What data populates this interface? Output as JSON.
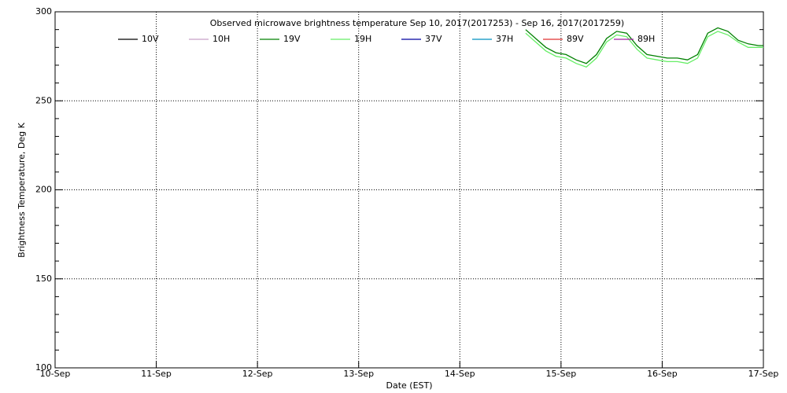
{
  "chart_data": {
    "type": "line",
    "title": "Observed microwave brightness temperature Sep 10, 2017(2017253) - Sep 16, 2017(2017259)",
    "x_label": "Date (EST)",
    "y_label": "Brightness Temperature, Deg K",
    "x": [
      4.65,
      4.75,
      4.85,
      4.95,
      5.05,
      5.15,
      5.25,
      5.35,
      5.45,
      5.55,
      5.65,
      5.75,
      5.85,
      5.95,
      6.05,
      6.15,
      6.25,
      6.35,
      6.45,
      6.55,
      6.65,
      6.75,
      6.85,
      6.95,
      7.0
    ],
    "xlim": [
      0,
      7
    ],
    "xticks": [
      {
        "value": 0,
        "label": "10-Sep"
      },
      {
        "value": 1,
        "label": "11-Sep"
      },
      {
        "value": 2,
        "label": "12-Sep"
      },
      {
        "value": 3,
        "label": "13-Sep"
      },
      {
        "value": 4,
        "label": "14-Sep"
      },
      {
        "value": 5,
        "label": "15-Sep"
      },
      {
        "value": 6,
        "label": "16-Sep"
      },
      {
        "value": 7,
        "label": "17-Sep"
      }
    ],
    "ylim": [
      100,
      300
    ],
    "yticks": [
      100,
      150,
      200,
      250,
      300
    ],
    "y_minor_ticks": [
      110,
      120,
      130,
      140,
      160,
      170,
      180,
      190,
      210,
      220,
      230,
      240,
      260,
      270,
      280,
      290
    ],
    "grid": true,
    "series": [
      {
        "name": "10V",
        "color": "#000000",
        "values": [
          null,
          null,
          null,
          null,
          null,
          null,
          null,
          null,
          null,
          null,
          null,
          null,
          null,
          null,
          null,
          null,
          null,
          null,
          null,
          null,
          null,
          null,
          null,
          null,
          null
        ]
      },
      {
        "name": "10H",
        "color": "#c8a0c8",
        "values": [
          null,
          null,
          null,
          null,
          null,
          null,
          null,
          null,
          null,
          null,
          null,
          null,
          null,
          null,
          null,
          null,
          null,
          null,
          null,
          null,
          null,
          null,
          null,
          null,
          null
        ]
      },
      {
        "name": "19V",
        "color": "#008000",
        "values": [
          290,
          285,
          280,
          277,
          276,
          273,
          271,
          276,
          285,
          289,
          288,
          281,
          276,
          275,
          274,
          274,
          273,
          276,
          288,
          291,
          289,
          284,
          282,
          281,
          281
        ]
      },
      {
        "name": "19H",
        "color": "#66ee66",
        "values": [
          288,
          283,
          278,
          275,
          274,
          271,
          269,
          274,
          283,
          287,
          286,
          279,
          274,
          273,
          272,
          272,
          271,
          274,
          286,
          289,
          287,
          283,
          280,
          280,
          280
        ]
      },
      {
        "name": "37V",
        "color": "#0000a0",
        "values": [
          null,
          null,
          null,
          null,
          null,
          null,
          null,
          null,
          null,
          null,
          null,
          null,
          null,
          null,
          null,
          null,
          null,
          null,
          null,
          null,
          null,
          null,
          null,
          null,
          null
        ]
      },
      {
        "name": "37H",
        "color": "#0090c0",
        "values": [
          null,
          null,
          null,
          null,
          null,
          null,
          null,
          null,
          null,
          null,
          null,
          null,
          null,
          null,
          null,
          null,
          null,
          null,
          null,
          null,
          null,
          null,
          null,
          null,
          null
        ]
      },
      {
        "name": "89V",
        "color": "#e03030",
        "values": [
          null,
          null,
          null,
          null,
          null,
          null,
          null,
          null,
          null,
          null,
          null,
          null,
          null,
          null,
          null,
          null,
          null,
          null,
          null,
          null,
          null,
          null,
          null,
          null,
          null
        ]
      },
      {
        "name": "89H",
        "color": "#a020a0",
        "values": [
          null,
          null,
          null,
          null,
          null,
          null,
          null,
          null,
          null,
          null,
          null,
          null,
          null,
          null,
          null,
          null,
          null,
          null,
          null,
          null,
          null,
          null,
          null,
          null,
          null
        ]
      }
    ]
  }
}
